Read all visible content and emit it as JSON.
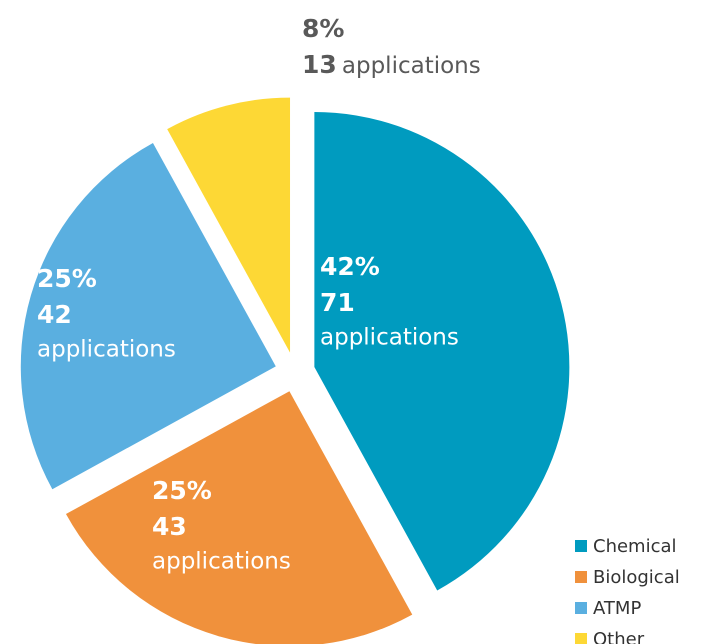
{
  "chart_data": {
    "type": "pie",
    "categories": [
      "Chemical",
      "Biological",
      "ATMP",
      "Other"
    ],
    "values": [
      42,
      25,
      25,
      8
    ],
    "value_labels": [
      "42%",
      "25%",
      "25%",
      "8%"
    ],
    "counts": [
      71,
      43,
      42,
      13
    ],
    "count_label": "applications",
    "colors": [
      "#009bbf",
      "#f0913c",
      "#5aafe0",
      "#fdd835"
    ],
    "legend": "bottom-right"
  }
}
